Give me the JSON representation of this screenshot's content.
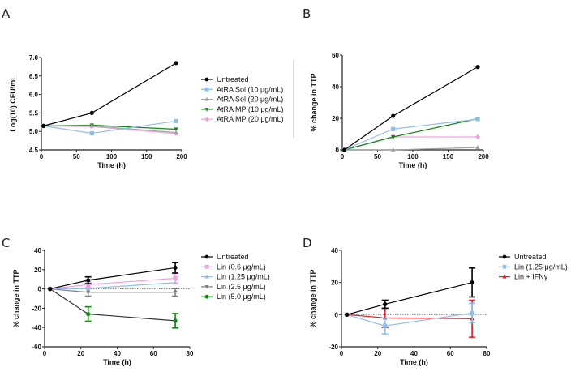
{
  "chart_data": [
    {
      "panel": "A",
      "type": "line",
      "title": "",
      "xlabel": "Time (h)",
      "ylabel": "Log(10) CFU/mL",
      "xlim": [
        0,
        200
      ],
      "ylim": [
        4.5,
        7.0
      ],
      "xticks": [
        0,
        50,
        100,
        150,
        200
      ],
      "yticks": [
        4.5,
        5.0,
        5.5,
        6.0,
        6.5,
        7.0
      ],
      "ytick_labels": [
        "4.5",
        "5.0",
        "5.5",
        "6.0",
        "6.5",
        "7.0"
      ],
      "legend_position": "right",
      "x": [
        3,
        72,
        192
      ],
      "series": [
        {
          "name": "Untreated",
          "color": "#000000",
          "marker": "circle",
          "values": [
            5.15,
            5.5,
            6.85
          ]
        },
        {
          "name": "AtRA Sol (10 μg/mL)",
          "color": "#8fbfee",
          "marker": "square",
          "values": [
            5.15,
            4.95,
            5.28
          ]
        },
        {
          "name": "AtRA Sol (20 μg/mL)",
          "color": "#a0a0a0",
          "marker": "triangle-up",
          "values": [
            5.15,
            5.15,
            4.97
          ]
        },
        {
          "name": "AtRA MP (10 μg/mL)",
          "color": "#118811",
          "marker": "triangle-down",
          "values": [
            5.15,
            5.17,
            5.06
          ]
        },
        {
          "name": "AtRA MP (20 μg/mL)",
          "color": "#f0a0e0",
          "marker": "diamond",
          "values": [
            5.15,
            5.13,
            4.94
          ]
        }
      ]
    },
    {
      "panel": "B",
      "type": "line",
      "title": "",
      "xlabel": "Time (h)",
      "ylabel": "% change in TTP",
      "xlim": [
        0,
        200
      ],
      "ylim": [
        0,
        60
      ],
      "xticks": [
        0,
        50,
        100,
        150,
        200
      ],
      "yticks": [
        0,
        20,
        40,
        60
      ],
      "ytick_labels": [
        "0",
        "20",
        "40",
        "60"
      ],
      "x": [
        3,
        72,
        192
      ],
      "series": [
        {
          "name": "Untreated",
          "color": "#000000",
          "marker": "circle",
          "values": [
            0,
            21.5,
            52.5
          ]
        },
        {
          "name": "AtRA Sol (10 μg/mL)",
          "color": "#8fbfee",
          "marker": "square",
          "values": [
            0,
            13.2,
            19.5
          ]
        },
        {
          "name": "AtRA Sol (20 μg/mL)",
          "color": "#a0a0a0",
          "marker": "triangle-up",
          "values": [
            0,
            0,
            1.5
          ]
        },
        {
          "name": "AtRA MP (10 μg/mL)",
          "color": "#118811",
          "marker": "triangle-down",
          "values": [
            0,
            8.2,
            19.8
          ]
        },
        {
          "name": "AtRA MP (20 μg/mL)",
          "color": "#f0a0e0",
          "marker": "diamond",
          "values": [
            0,
            8.2,
            8.2
          ]
        }
      ]
    },
    {
      "panel": "C",
      "type": "line",
      "title": "",
      "xlabel": "Time (h)",
      "ylabel": "% change in TTP",
      "xlim": [
        0,
        80
      ],
      "ylim": [
        -60,
        40
      ],
      "xticks": [
        0,
        20,
        40,
        60,
        80
      ],
      "yticks": [
        -60,
        -40,
        -20,
        0,
        20,
        40
      ],
      "ytick_labels": [
        "-60",
        "-40",
        "-20",
        "0",
        "20",
        "40"
      ],
      "reference_line": 0,
      "legend_position": "right",
      "x": [
        3,
        24,
        72
      ],
      "series": [
        {
          "name": "Untreated",
          "color": "#000000",
          "marker": "circle",
          "values": [
            0,
            9,
            22
          ],
          "errors": [
            0,
            3.5,
            5.5
          ]
        },
        {
          "name": "Lin (0.6 μg/mL)",
          "color": "#f0a0e0",
          "marker": "square",
          "values": [
            0,
            4.5,
            11
          ],
          "errors": [
            0,
            3,
            5
          ]
        },
        {
          "name": "Lin (1.25 μg/mL)",
          "color": "#8fbfee",
          "marker": "triangle-up",
          "values": [
            0,
            0.5,
            6.5
          ],
          "errors": [
            0,
            0,
            0
          ]
        },
        {
          "name": "Lin (2.5 μg/mL)",
          "color": "#808080",
          "marker": "triangle-down",
          "values": [
            0,
            -3.5,
            -3.5
          ],
          "errors": [
            0,
            4,
            4
          ]
        },
        {
          "name": "Lin (5.0 μg/mL)",
          "color": "#118811",
          "marker": "circle",
          "values": [
            0,
            -26,
            -33
          ],
          "errors": [
            0,
            7.5,
            7.5
          ]
        }
      ]
    },
    {
      "panel": "D",
      "type": "line",
      "title": "",
      "xlabel": "Time (h)",
      "ylabel": "% change in TTP",
      "xlim": [
        0,
        80
      ],
      "ylim": [
        -20,
        40
      ],
      "xticks": [
        0,
        20,
        40,
        60,
        80
      ],
      "yticks": [
        -20,
        0,
        20,
        40
      ],
      "ytick_labels": [
        "-20",
        "0",
        "20",
        "40"
      ],
      "reference_line": 0,
      "legend_position": "right",
      "x": [
        3,
        24,
        72
      ],
      "series": [
        {
          "name": "Untreated",
          "color": "#000000",
          "marker": "circle",
          "values": [
            0,
            6.5,
            20
          ],
          "errors": [
            0,
            2.5,
            9
          ]
        },
        {
          "name": "Lin (1.25 μg/mL)",
          "color": "#8fbfee",
          "marker": "square",
          "values": [
            0,
            -7,
            1
          ],
          "errors": [
            0,
            5,
            6
          ]
        },
        {
          "name": "Lin + IFNγ",
          "color": "#e8191f",
          "marker": "triangle-up",
          "values": [
            0,
            -2,
            -2.5
          ],
          "errors": [
            0,
            6,
            11.5
          ]
        }
      ]
    }
  ]
}
